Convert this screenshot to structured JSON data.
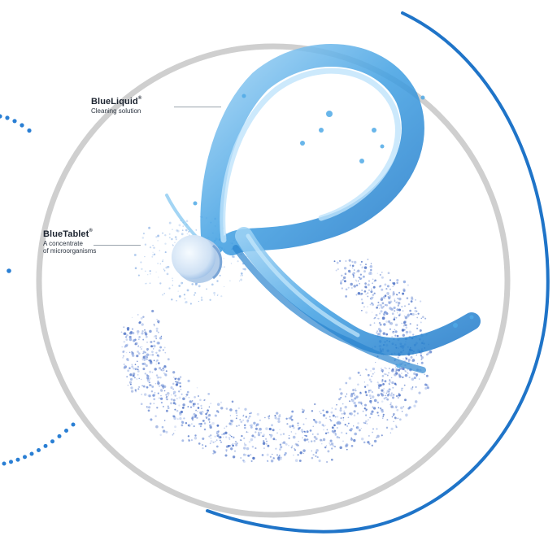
{
  "callouts": {
    "liquid": {
      "name": "BlueLiquid",
      "mark": "®",
      "description": "Cleaning solution"
    },
    "tablet": {
      "name": "BlueTablet",
      "mark": "®",
      "description_line1": "A concentrate",
      "description_line2": "of microorganisms"
    }
  },
  "colors": {
    "ring": "#cfcfcf",
    "accent_arc": "#1f74c8",
    "dots": "#2a7fd4",
    "liquid": "#4fa9e6",
    "liquid_dark": "#2b84cf",
    "particles": "#6f8fd6",
    "tablet": "#dbe8f6"
  }
}
